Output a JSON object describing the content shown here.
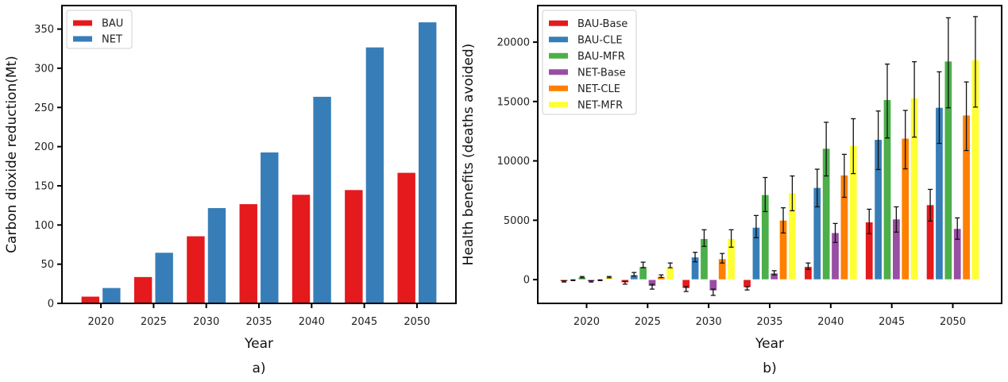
{
  "chart_data": [
    {
      "type": "bar",
      "panel_label": "a)",
      "title": "",
      "xlabel": "Year",
      "ylabel": "Carbon dioxide reduction(Mt)",
      "categories": [
        "2020",
        "2025",
        "2030",
        "2035",
        "2040",
        "2045",
        "2050"
      ],
      "x": [
        2020,
        2025,
        2030,
        2035,
        2040,
        2045,
        2050
      ],
      "xlim": [
        2016.3,
        2053.7
      ],
      "ylim": [
        0,
        380
      ],
      "yticks": [
        0,
        50,
        100,
        150,
        200,
        250,
        300,
        350
      ],
      "grid": false,
      "legend_position": "top-left",
      "series": [
        {
          "name": "BAU",
          "color": "#e41a1c",
          "values": [
            9,
            34,
            86,
            127,
            139,
            145,
            167
          ]
        },
        {
          "name": "NET",
          "color": "#377eb8",
          "values": [
            20,
            65,
            122,
            193,
            264,
            327,
            359
          ]
        }
      ]
    },
    {
      "type": "bar",
      "panel_label": "b)",
      "title": "",
      "xlabel": "Year",
      "ylabel": "Health benefits (deaths avoided)",
      "categories": [
        "2020",
        "2025",
        "2030",
        "2035",
        "2040",
        "2045",
        "2050"
      ],
      "x": [
        2020,
        2025,
        2030,
        2035,
        2040,
        2045,
        2050
      ],
      "xlim": [
        2016.0,
        2054.0
      ],
      "ylim": [
        -2000,
        23080
      ],
      "yticks": [
        0,
        5000,
        10000,
        15000,
        20000
      ],
      "grid": false,
      "legend_position": "top-left",
      "error_bars": true,
      "series": [
        {
          "name": "BAU-Base",
          "color": "#e41a1c",
          "values": [
            -150,
            -250,
            -730,
            -650,
            1100,
            4850,
            6300
          ],
          "err_low": [
            -200,
            -380,
            -1000,
            -870,
            870,
            3870,
            4930
          ],
          "err_high": [
            -100,
            -150,
            -600,
            -600,
            1400,
            5930,
            7600
          ]
        },
        {
          "name": "BAU-CLE",
          "color": "#377eb8",
          "values": [
            -50,
            400,
            1900,
            4400,
            7750,
            11800,
            14500
          ],
          "err_low": [
            -80,
            300,
            1500,
            3530,
            6130,
            9270,
            11470
          ],
          "err_high": [
            -20,
            600,
            2300,
            5400,
            9300,
            14200,
            17500
          ]
        },
        {
          "name": "BAU-MFR",
          "color": "#4daf4a",
          "values": [
            200,
            1100,
            3450,
            7150,
            11050,
            15150,
            18400
          ],
          "err_low": [
            150,
            1000,
            2800,
            5730,
            8730,
            11930,
            14470
          ],
          "err_high": [
            260,
            1470,
            4200,
            8600,
            13250,
            18150,
            22050
          ]
        },
        {
          "name": "NET-Base",
          "color": "#984ea3",
          "values": [
            -150,
            -550,
            -930,
            550,
            3950,
            5100,
            4300
          ],
          "err_low": [
            -200,
            -800,
            -1330,
            400,
            3130,
            4000,
            3400
          ],
          "err_high": [
            -100,
            -400,
            -800,
            750,
            4730,
            6130,
            5200
          ]
        },
        {
          "name": "NET-CLE",
          "color": "#ff7f00",
          "values": [
            -50,
            250,
            1750,
            5000,
            8800,
            11900,
            13850
          ],
          "err_low": [
            -80,
            180,
            1400,
            3930,
            6930,
            9330,
            10870
          ],
          "err_high": [
            -20,
            400,
            2200,
            6050,
            10550,
            14250,
            16650
          ]
        },
        {
          "name": "NET-MFR",
          "color": "#ffff33",
          "values": [
            200,
            1050,
            3450,
            7300,
            11300,
            15300,
            18500
          ],
          "err_low": [
            150,
            1000,
            2730,
            5800,
            8930,
            12000,
            14530
          ],
          "err_high": [
            260,
            1400,
            4200,
            8730,
            13550,
            18350,
            22150
          ]
        }
      ]
    }
  ]
}
